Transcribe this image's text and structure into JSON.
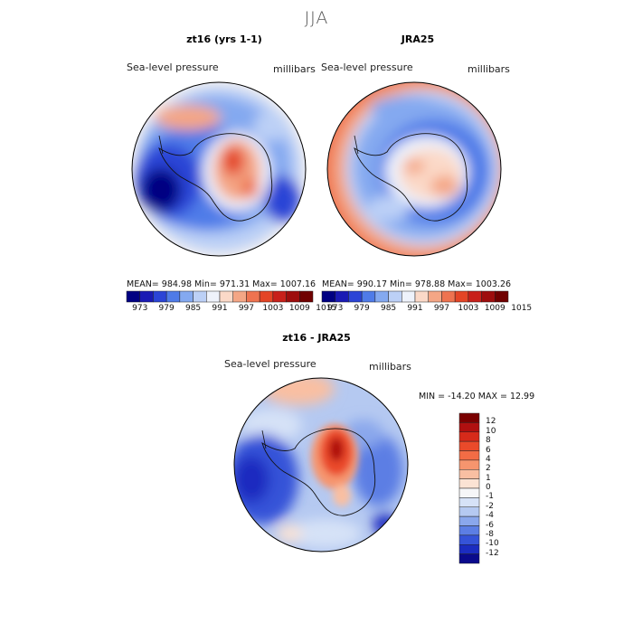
{
  "figure": {
    "season": "JJA",
    "panels": [
      {
        "title": "zt16 (yrs 1-1)",
        "left_label": "Sea-level pressure",
        "right_label": "millibars",
        "stats": "MEAN=  984.98    Min=  971.31    Max=  1007.16"
      },
      {
        "title": "JRA25",
        "left_label": "Sea-level pressure",
        "right_label": "millibars",
        "stats": "MEAN=  990.17    Min=  978.88    Max=  1003.26"
      },
      {
        "title": "zt16 - JRA25",
        "left_label": "Sea-level pressure",
        "right_label": "millibars",
        "stats": "MIN = -14.20  MAX =   12.99"
      }
    ],
    "colorbar_top": {
      "ticks": [
        "973",
        "979",
        "985",
        "991",
        "997",
        "1003",
        "1009",
        "1015"
      ],
      "colors": [
        "#000082",
        "#1a1ab4",
        "#2b44d6",
        "#4f7be8",
        "#84a9f0",
        "#bcd0f6",
        "#eef2fb",
        "#fbd9c8",
        "#f4a685",
        "#ee7350",
        "#e44526",
        "#c8201a",
        "#9e0d0d",
        "#700000"
      ]
    },
    "colorbar_diff": {
      "ticks": [
        "12",
        "10",
        "8",
        "6",
        "4",
        "2",
        "1",
        "0",
        "-1",
        "-2",
        "-4",
        "-6",
        "-8",
        "-10",
        "-12"
      ],
      "colors": [
        "#7a0000",
        "#b01010",
        "#d62a1a",
        "#ea4a2a",
        "#f26c45",
        "#f6956e",
        "#f9bfa2",
        "#fbe3d4",
        "#f6f6f8",
        "#d6e2f7",
        "#b5c9f1",
        "#8aa7ec",
        "#5c7ee4",
        "#3553d8",
        "#1b2cc0",
        "#0a0a8c"
      ]
    }
  }
}
